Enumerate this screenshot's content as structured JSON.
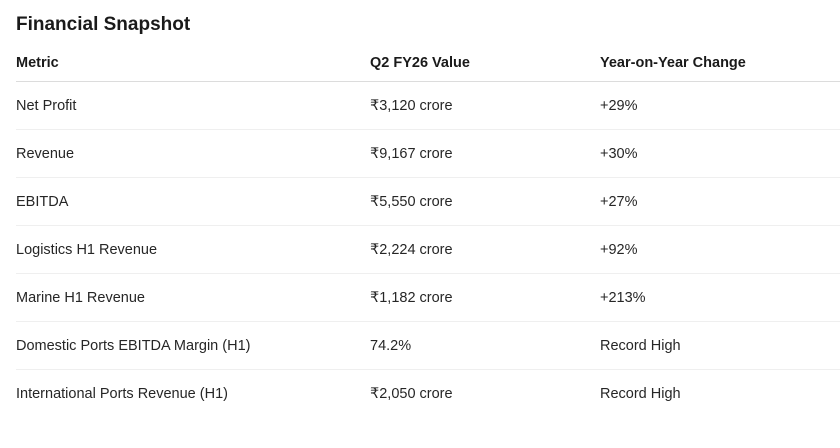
{
  "title": "Financial Snapshot",
  "table": {
    "headers": [
      "Metric",
      "Q2 FY26 Value",
      "Year-on-Year Change"
    ],
    "rows": [
      [
        "Net Profit",
        "₹3,120 crore",
        "+29%"
      ],
      [
        "Revenue",
        "₹9,167 crore",
        "+30%"
      ],
      [
        "EBITDA",
        "₹5,550 crore",
        "+27%"
      ],
      [
        "Logistics H1 Revenue",
        "₹2,224 crore",
        "+92%"
      ],
      [
        "Marine H1 Revenue",
        "₹1,182 crore",
        "+213%"
      ],
      [
        "Domestic Ports EBITDA Margin (H1)",
        "74.2%",
        "Record High"
      ],
      [
        "International Ports Revenue (H1)",
        "₹2,050 crore",
        "Record High"
      ]
    ]
  }
}
